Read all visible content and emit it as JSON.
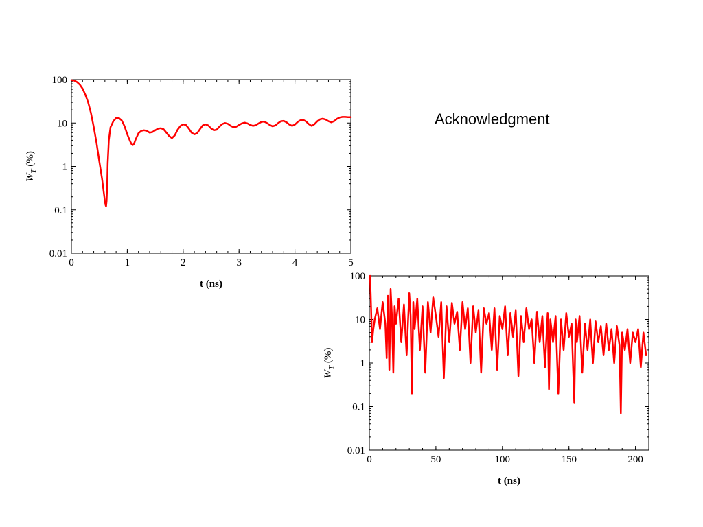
{
  "slide": {
    "heading": "Acknowledgment"
  },
  "chart_data": [
    {
      "type": "line",
      "xlabel": "t (ns)",
      "ylabel_main": "W",
      "ylabel_sub": "T",
      "ylabel_unit": " (%)",
      "yscale": "log",
      "xlim": [
        0,
        5
      ],
      "ylim": [
        0.01,
        100
      ],
      "xticks": [
        0,
        1,
        2,
        3,
        4,
        5
      ],
      "ytick_labels": [
        "0.01",
        "0.1",
        "1",
        "10",
        "100"
      ],
      "yticks": [
        0.01,
        0.1,
        1,
        10,
        100
      ],
      "grid": false,
      "color": "#ff0000",
      "series": [
        {
          "x": [
            0,
            0.05,
            0.1,
            0.15,
            0.2,
            0.25,
            0.3,
            0.35,
            0.4,
            0.45,
            0.5,
            0.55,
            0.58,
            0.6,
            0.61,
            0.62,
            0.63,
            0.64,
            0.65,
            0.67,
            0.7,
            0.75,
            0.8,
            0.85,
            0.9,
            0.95,
            1.0,
            1.05,
            1.08,
            1.1,
            1.12,
            1.15,
            1.2,
            1.25,
            1.3,
            1.35,
            1.4,
            1.45,
            1.5,
            1.55,
            1.6,
            1.65,
            1.7,
            1.75,
            1.8,
            1.85,
            1.9,
            1.95,
            2.0,
            2.05,
            2.1,
            2.15,
            2.2,
            2.25,
            2.3,
            2.35,
            2.4,
            2.45,
            2.5,
            2.55,
            2.6,
            2.65,
            2.7,
            2.75,
            2.8,
            2.85,
            2.9,
            2.95,
            3.0,
            3.05,
            3.1,
            3.15,
            3.2,
            3.25,
            3.3,
            3.35,
            3.4,
            3.45,
            3.5,
            3.55,
            3.6,
            3.65,
            3.7,
            3.75,
            3.8,
            3.85,
            3.9,
            3.95,
            4.0,
            4.05,
            4.1,
            4.15,
            4.2,
            4.25,
            4.3,
            4.35,
            4.4,
            4.45,
            4.5,
            4.55,
            4.6,
            4.65,
            4.7,
            4.75,
            4.8,
            4.85,
            4.9,
            4.95,
            5.0
          ],
          "y": [
            97,
            95,
            88,
            77,
            62,
            45,
            30,
            17,
            8,
            3.5,
            1.3,
            0.5,
            0.25,
            0.16,
            0.13,
            0.12,
            0.16,
            0.35,
            1.2,
            4,
            8,
            11,
            13,
            13,
            11.5,
            8.5,
            5.5,
            3.8,
            3.2,
            3.1,
            3.3,
            4.2,
            5.8,
            6.6,
            6.8,
            6.6,
            6.0,
            6.2,
            6.8,
            7.4,
            7.6,
            7.2,
            6.0,
            5.0,
            4.5,
            5.2,
            7.0,
            8.5,
            9.3,
            9.0,
            7.5,
            6.0,
            5.5,
            5.8,
            7.2,
            8.8,
            9.3,
            8.8,
            7.5,
            6.8,
            7.0,
            8.3,
            9.5,
            10.0,
            9.6,
            8.6,
            8.0,
            8.2,
            9.0,
            9.8,
            10.2,
            9.8,
            9.0,
            8.6,
            8.9,
            9.8,
            10.6,
            10.8,
            10.0,
            9.0,
            8.4,
            8.8,
            10.0,
            11.0,
            11.2,
            10.4,
            9.2,
            8.6,
            9.2,
            10.6,
            11.6,
            11.8,
            10.8,
            9.4,
            8.6,
            9.4,
            11.0,
            12.2,
            12.6,
            12.0,
            11.0,
            10.4,
            11.0,
            12.4,
            13.4,
            13.8,
            13.8,
            13.6,
            13.6
          ]
        }
      ]
    },
    {
      "type": "line",
      "xlabel": "t (ns)",
      "ylabel_main": "W",
      "ylabel_sub": "T",
      "ylabel_unit": " (%)",
      "yscale": "log",
      "xlim": [
        0,
        210
      ],
      "ylim": [
        0.01,
        100
      ],
      "xticks": [
        0,
        50,
        100,
        150,
        200
      ],
      "ytick_labels": [
        "0.01",
        "0.1",
        "1",
        "10",
        "100"
      ],
      "yticks": [
        0.01,
        0.1,
        1,
        10,
        100
      ],
      "grid": false,
      "color": "#ff0000",
      "series": [
        {
          "x": [
            0.5,
            1,
            2,
            3,
            4,
            6,
            8,
            10,
            12,
            13,
            14,
            15,
            16,
            17,
            18,
            19,
            20,
            22,
            24,
            26,
            28,
            30,
            31,
            32,
            33,
            34,
            36,
            38,
            40,
            42,
            44,
            46,
            48,
            50,
            52,
            54,
            56,
            58,
            60,
            62,
            64,
            66,
            68,
            70,
            72,
            74,
            76,
            78,
            80,
            82,
            84,
            86,
            88,
            90,
            92,
            94,
            96,
            98,
            100,
            102,
            104,
            106,
            108,
            110,
            112,
            114,
            116,
            118,
            120,
            122,
            124,
            126,
            128,
            130,
            132,
            134,
            135,
            136,
            138,
            140,
            142,
            144,
            146,
            148,
            150,
            152,
            154,
            155,
            156,
            158,
            160,
            162,
            164,
            166,
            168,
            170,
            172,
            174,
            176,
            178,
            180,
            182,
            184,
            186,
            188,
            189,
            190,
            192,
            194,
            196,
            198,
            200,
            202,
            204,
            206,
            208
          ],
          "y": [
            100,
            40,
            3,
            6,
            10,
            18,
            6,
            25,
            8,
            1.3,
            35,
            0.7,
            50,
            12,
            0.6,
            20,
            8,
            30,
            3,
            22,
            1.5,
            40,
            12,
            0.2,
            25,
            6,
            30,
            2,
            20,
            0.6,
            25,
            5,
            32,
            12,
            4,
            25,
            0.45,
            20,
            3,
            24,
            8,
            15,
            2,
            25,
            6,
            18,
            1,
            20,
            5,
            16,
            0.6,
            18,
            8,
            14,
            2,
            18,
            0.7,
            12,
            6,
            20,
            1.5,
            14,
            4,
            16,
            0.5,
            12,
            3,
            18,
            6,
            10,
            1,
            15,
            3,
            12,
            0.8,
            14,
            0.25,
            10,
            3,
            12,
            0.2,
            10,
            2,
            14,
            4,
            8,
            0.12,
            10,
            3,
            12,
            0.6,
            8,
            2,
            10,
            1,
            9,
            3,
            7,
            1.5,
            8,
            2,
            6,
            1,
            7,
            2.5,
            0.07,
            5,
            2,
            6,
            1,
            5,
            3,
            6,
            0.8,
            5,
            1.5
          ]
        }
      ]
    }
  ]
}
